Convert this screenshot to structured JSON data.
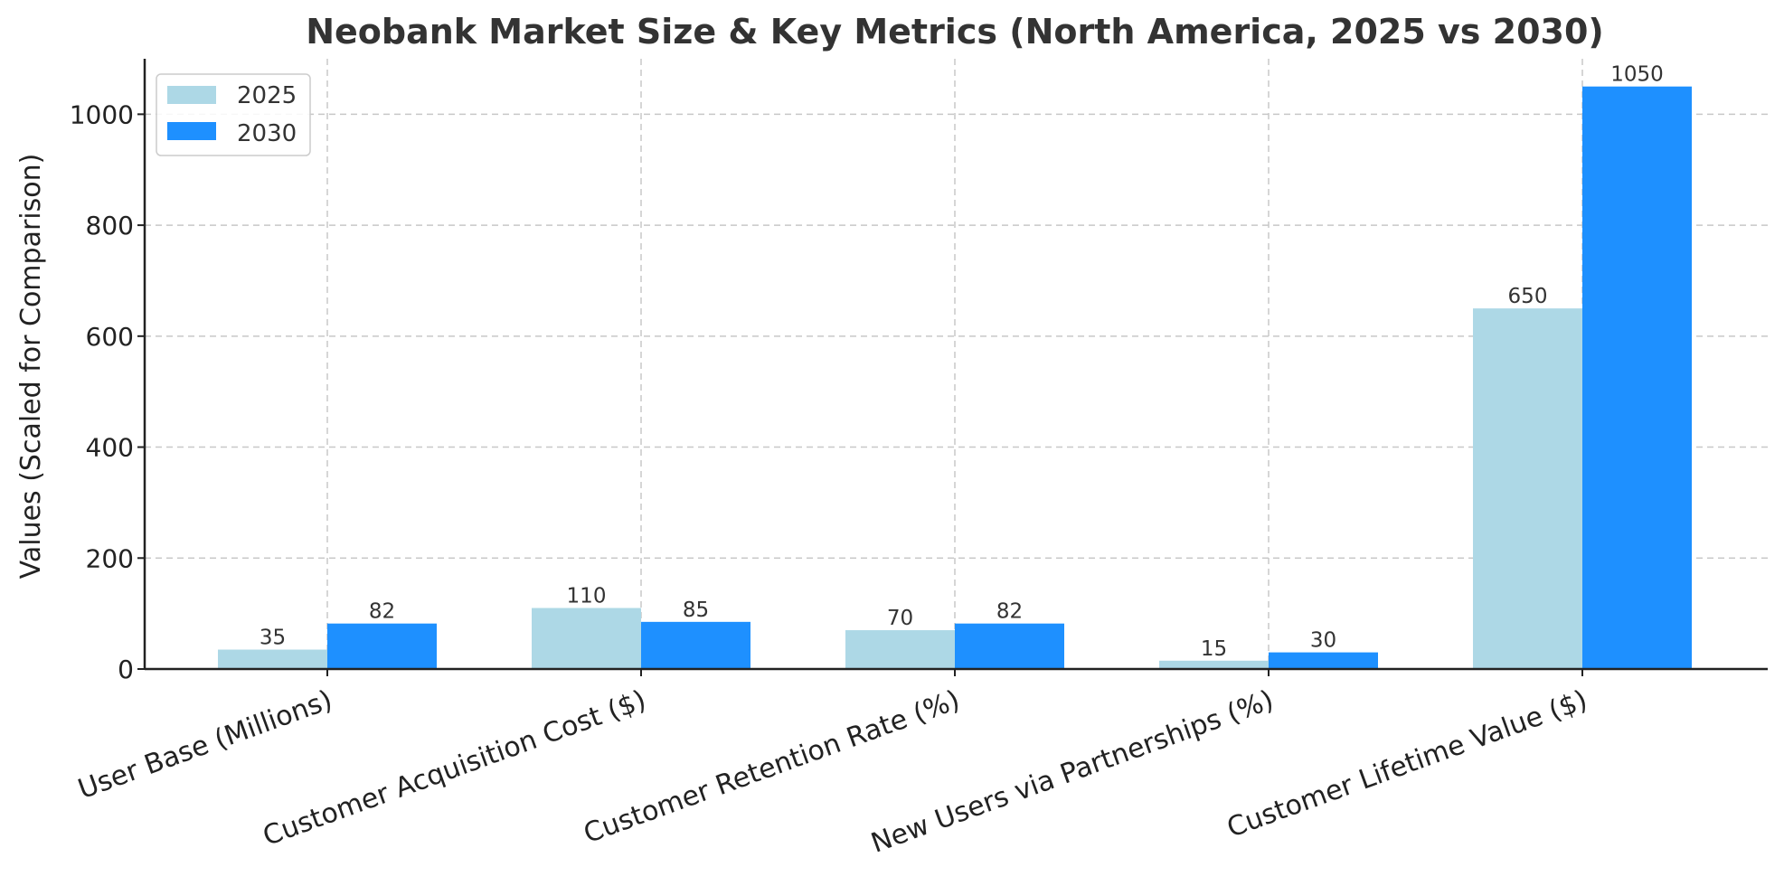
{
  "chart_data": {
    "type": "bar",
    "title": "Neobank Market Size & Key Metrics (North America, 2025 vs 2030)",
    "xlabel": "",
    "ylabel": "Values (Scaled for Comparison)",
    "categories": [
      "User Base (Millions)",
      "Customer Acquisition Cost ($)",
      "Customer Retention Rate (%)",
      "New Users via Partnerships (%)",
      "Customer Lifetime Value ($)"
    ],
    "series": [
      {
        "name": "2025",
        "color": "#add8e6",
        "values": [
          35,
          110,
          70,
          15,
          650
        ]
      },
      {
        "name": "2030",
        "color": "#1e90ff",
        "values": [
          82,
          85,
          82,
          30,
          1050
        ]
      }
    ],
    "ylim": [
      0,
      1100
    ],
    "yticks": [
      0,
      200,
      400,
      600,
      800,
      1000
    ],
    "grid": true,
    "legend_position": "top-left"
  }
}
